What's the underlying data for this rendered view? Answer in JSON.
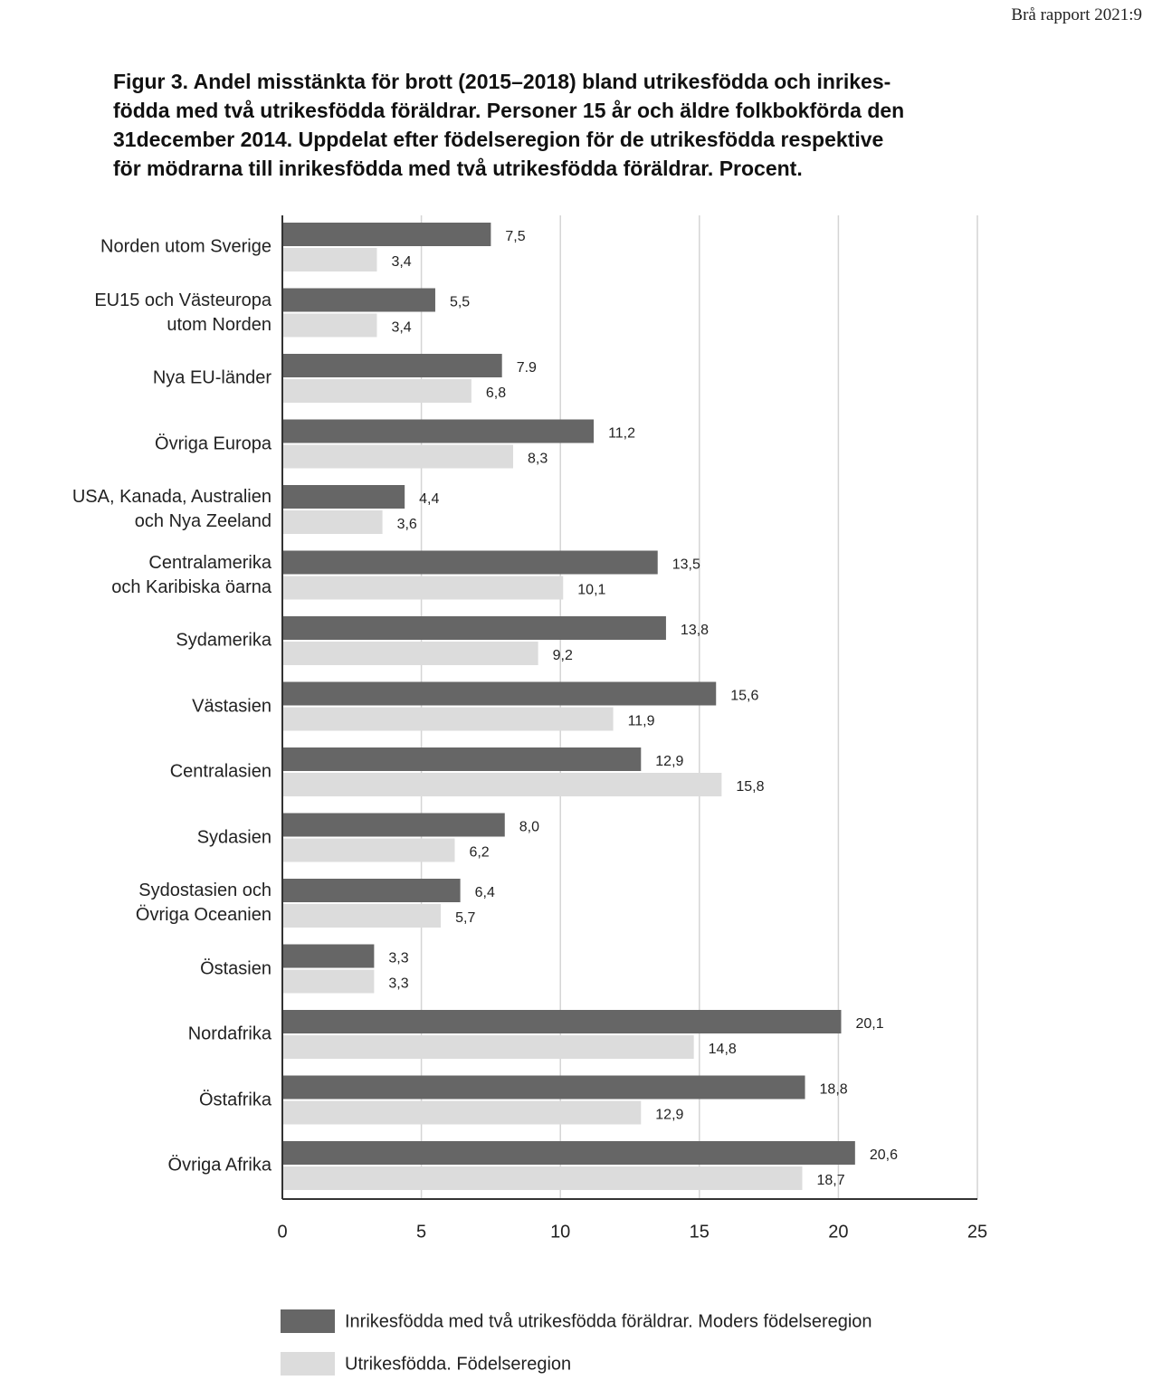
{
  "header": "Brå rapport 2021:9",
  "chart_data": {
    "type": "hbar",
    "title": "Figur 3. Andel misstänkta för brott (2015–2018) bland utrikesfödda och inrikes-\nfödda med två utrikesfödda föräldrar. Personer 15 år och äldre folkbokförda den\n31december 2014. Uppdelat efter födelseregion för de utrikesfödda respektive\nför mödrarna till inrikesfödda med två utrikesfödda föräldrar. Procent.",
    "categories": [
      "Norden utom Sverige",
      "EU15 och Västeuropa\nutom Norden",
      "Nya EU-länder",
      "Övriga Europa",
      "USA, Kanada, Australien\noch Nya Zeeland",
      "Centralamerika\noch Karibiska öarna",
      "Sydamerika",
      "Västasien",
      "Centralasien",
      "Sydasien",
      "Sydostasien och\nÖvriga Oceanien",
      "Östasien",
      "Nordafrika",
      "Östafrika",
      "Övriga Afrika"
    ],
    "series": [
      {
        "name": "Inrikesfödda med två utrikesfödda föräldrar. Moders födelseregion",
        "color": "#666666",
        "values": [
          7.5,
          5.5,
          7.9,
          11.2,
          4.4,
          13.5,
          13.8,
          15.6,
          12.9,
          8.0,
          6.4,
          3.3,
          20.1,
          18.8,
          20.6
        ],
        "value_labels": [
          "7,5",
          "5,5",
          "7.9",
          "11,2",
          "4,4",
          "13,5",
          "13,8",
          "15,6",
          "12,9",
          "8,0",
          "6,4",
          "3,3",
          "20,1",
          "18,8",
          "20,6"
        ]
      },
      {
        "name": "Utrikesfödda. Födelseregion",
        "color": "#dcdcdc",
        "values": [
          3.4,
          3.4,
          6.8,
          8.3,
          3.6,
          10.1,
          9.2,
          11.9,
          15.8,
          6.2,
          5.7,
          3.3,
          14.8,
          12.9,
          18.7
        ],
        "value_labels": [
          "3,4",
          "3,4",
          "6,8",
          "8,3",
          "3,6",
          "10,1",
          "9,2",
          "11,9",
          "15,8",
          "6,2",
          "5,7",
          "3,3",
          "14,8",
          "12,9",
          "18,7"
        ]
      }
    ],
    "xlim": [
      0,
      25
    ],
    "xticks": [
      0,
      5,
      10,
      15,
      20,
      25
    ],
    "grid": true
  }
}
